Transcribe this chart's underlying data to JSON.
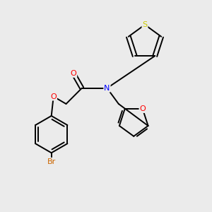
{
  "background_color": "#ebebeb",
  "bond_color": "#000000",
  "atom_colors": {
    "O": "#ff0000",
    "N": "#0000ff",
    "S": "#cccc00",
    "Br": "#cc6600",
    "C": "#000000"
  },
  "figsize": [
    3.0,
    3.0
  ],
  "dpi": 100
}
